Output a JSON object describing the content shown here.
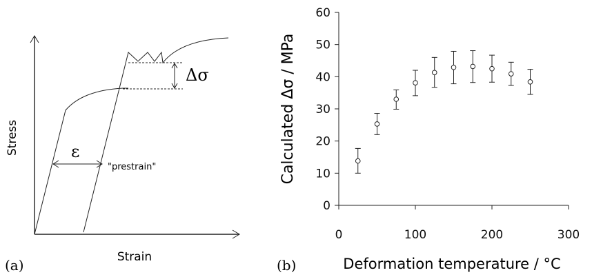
{
  "panel_a": {
    "label": "(a)",
    "xlabel": "Strain",
    "ylabel": "Stress",
    "epsilon": "ε",
    "prestrain": "\"prestrain\"",
    "delta_sigma": "Δσ"
  },
  "panel_b": {
    "label": "(b)"
  },
  "chart_data": {
    "type": "scatter",
    "xlabel": "Deformation temperature / °C",
    "ylabel": "Calculated Δσ / MPa",
    "xlim": [
      0,
      300
    ],
    "ylim": [
      0,
      60
    ],
    "xticks": [
      0,
      100,
      200,
      300
    ],
    "yticks": [
      0,
      10,
      20,
      30,
      40,
      50,
      60
    ],
    "grid": false,
    "x": [
      25,
      50,
      75,
      100,
      125,
      150,
      175,
      200,
      225,
      250
    ],
    "y": [
      13.8,
      25.3,
      33.0,
      38.1,
      41.3,
      42.9,
      43.2,
      42.5,
      40.9,
      38.4
    ],
    "yerr_low": [
      3.8,
      3.3,
      3.1,
      4.0,
      4.6,
      5.1,
      5.0,
      4.2,
      3.6,
      3.9
    ],
    "yerr_high": [
      3.9,
      3.3,
      2.9,
      3.9,
      4.7,
      5.0,
      4.9,
      4.2,
      3.6,
      3.9
    ],
    "marker": "open-circle",
    "color": "#222222"
  }
}
